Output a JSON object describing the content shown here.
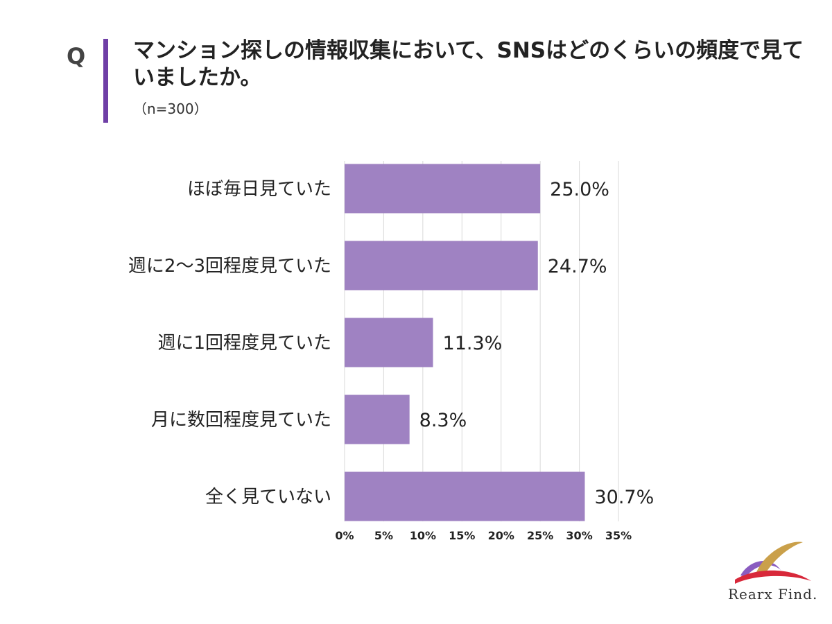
{
  "header": {
    "q_mark": "Q",
    "title": "マンション探しの情報収集において、SNSはどのくらいの頻度で見ていましたか。",
    "sample_size": "（n=300）"
  },
  "colors": {
    "accent": "#6f3fa6",
    "bar": "#9f82c2",
    "grid": "#d9d9d9"
  },
  "chart_data": {
    "type": "bar",
    "orientation": "horizontal",
    "categories": [
      "ほぼ毎日見ていた",
      "週に2〜3回程度見ていた",
      "週に1回程度見ていた",
      "月に数回程度見ていた",
      "全く見ていない"
    ],
    "values": [
      25.0,
      24.7,
      11.3,
      8.3,
      30.7
    ],
    "value_labels": [
      "25.0%",
      "24.7%",
      "11.3%",
      "8.3%",
      "30.7%"
    ],
    "xlim": [
      0,
      35
    ],
    "x_ticks": [
      0,
      5,
      10,
      15,
      20,
      25,
      30,
      35
    ],
    "x_tick_labels": [
      "0%",
      "5%",
      "10%",
      "15%",
      "20%",
      "25%",
      "30%",
      "35%"
    ],
    "grid": true,
    "legend": "none"
  },
  "logo": {
    "text": "Rearx Find."
  }
}
